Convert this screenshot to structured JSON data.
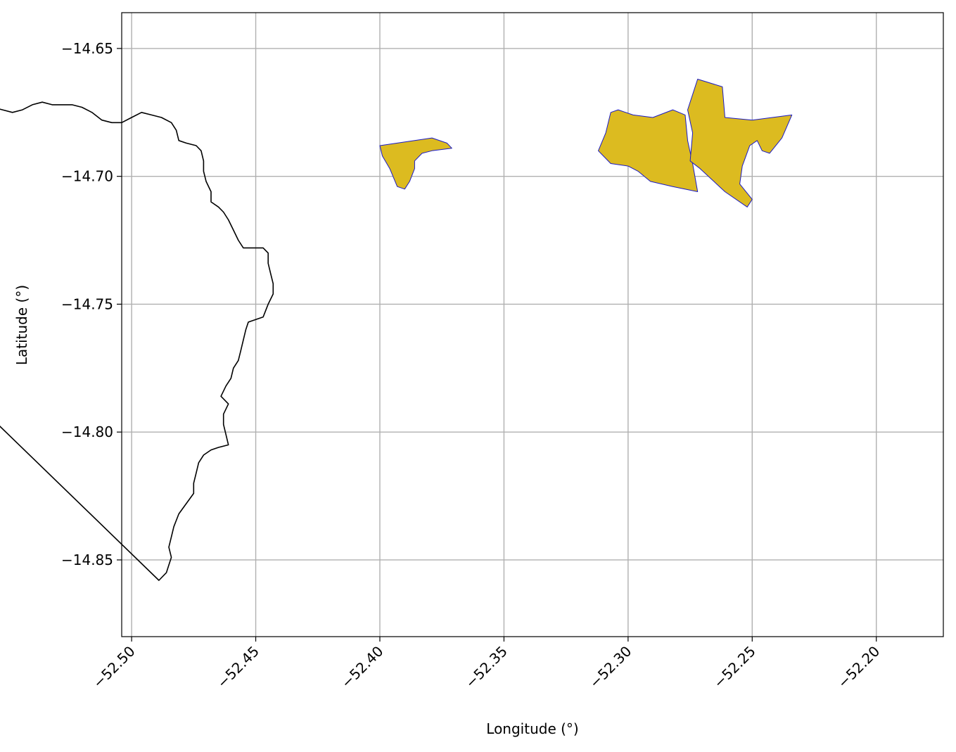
{
  "axes": {
    "xlabel": "Longitude (°)",
    "ylabel": "Latitude (°)",
    "xlim": [
      -52.504,
      -52.173
    ],
    "ylim": [
      -14.88,
      -14.636
    ],
    "xticks": [
      {
        "value": -52.5,
        "label": "−52.50"
      },
      {
        "value": -52.45,
        "label": "−52.45"
      },
      {
        "value": -52.4,
        "label": "−52.40"
      },
      {
        "value": -52.35,
        "label": "−52.35"
      },
      {
        "value": -52.3,
        "label": "−52.30"
      },
      {
        "value": -52.25,
        "label": "−52.25"
      },
      {
        "value": -52.2,
        "label": "−52.20"
      }
    ],
    "yticks": [
      {
        "value": -14.65,
        "label": "−14.65"
      },
      {
        "value": -14.7,
        "label": "−14.70"
      },
      {
        "value": -14.75,
        "label": "−14.75"
      },
      {
        "value": -14.8,
        "label": "−14.80"
      },
      {
        "value": -14.85,
        "label": "−14.85"
      }
    ],
    "grid": true,
    "xtick_rotation_deg": 45
  },
  "colors": {
    "boundary": "#000000",
    "highlight_fill": "#dcbb20",
    "highlight_edge": "#1a1ac8",
    "grid": "#b0b0b0"
  },
  "map": {
    "boundary": [
      [
        -52.489,
        -14.858
      ],
      [
        -52.486,
        -14.855
      ],
      [
        -52.485,
        -14.852
      ],
      [
        -52.484,
        -14.849
      ],
      [
        -52.485,
        -14.845
      ],
      [
        -52.484,
        -14.841
      ],
      [
        -52.483,
        -14.837
      ],
      [
        -52.481,
        -14.832
      ],
      [
        -52.478,
        -14.828
      ],
      [
        -52.475,
        -14.824
      ],
      [
        -52.475,
        -14.82
      ],
      [
        -52.474,
        -14.816
      ],
      [
        -52.473,
        -14.812
      ],
      [
        -52.471,
        -14.809
      ],
      [
        -52.468,
        -14.807
      ],
      [
        -52.465,
        -14.806
      ],
      [
        -52.461,
        -14.805
      ],
      [
        -52.462,
        -14.801
      ],
      [
        -52.463,
        -14.797
      ],
      [
        -52.463,
        -14.793
      ],
      [
        -52.461,
        -14.789
      ],
      [
        -52.464,
        -14.786
      ],
      [
        -52.462,
        -14.782
      ],
      [
        -52.46,
        -14.779
      ],
      [
        -52.459,
        -14.775
      ],
      [
        -52.457,
        -14.772
      ],
      [
        -52.456,
        -14.768
      ],
      [
        -52.455,
        -14.764
      ],
      [
        -52.454,
        -14.76
      ],
      [
        -52.453,
        -14.757
      ],
      [
        -52.45,
        -14.756
      ],
      [
        -52.447,
        -14.755
      ],
      [
        -52.445,
        -14.75
      ],
      [
        -52.443,
        -14.746
      ],
      [
        -52.443,
        -14.742
      ],
      [
        -52.444,
        -14.738
      ],
      [
        -52.445,
        -14.734
      ],
      [
        -52.445,
        -14.73
      ],
      [
        -52.447,
        -14.728
      ],
      [
        -52.451,
        -14.728
      ],
      [
        -52.455,
        -14.728
      ],
      [
        -52.457,
        -14.725
      ],
      [
        -52.459,
        -14.721
      ],
      [
        -52.461,
        -14.717
      ],
      [
        -52.463,
        -14.714
      ],
      [
        -52.465,
        -14.712
      ],
      [
        -52.468,
        -14.71
      ],
      [
        -52.468,
        -14.706
      ],
      [
        -52.47,
        -14.702
      ],
      [
        -52.471,
        -14.698
      ],
      [
        -52.471,
        -14.694
      ],
      [
        -52.472,
        -14.69
      ],
      [
        -52.474,
        -14.688
      ],
      [
        -52.478,
        -14.687
      ],
      [
        -52.481,
        -14.686
      ],
      [
        -52.482,
        -14.682
      ],
      [
        -52.484,
        -14.679
      ],
      [
        -52.488,
        -14.677
      ],
      [
        -52.492,
        -14.676
      ],
      [
        -52.496,
        -14.675
      ],
      [
        -52.5,
        -14.677
      ],
      [
        -52.504,
        -14.679
      ],
      [
        -52.508,
        -14.679
      ],
      [
        -52.512,
        -14.678
      ],
      [
        -52.516,
        -14.675
      ],
      [
        -52.52,
        -14.673
      ],
      [
        -52.524,
        -14.672
      ],
      [
        -52.528,
        -14.672
      ],
      [
        -52.532,
        -14.672
      ],
      [
        -52.536,
        -14.671
      ],
      [
        -52.54,
        -14.672
      ],
      [
        -52.544,
        -14.674
      ],
      [
        -52.548,
        -14.675
      ],
      [
        -52.552,
        -14.674
      ],
      [
        -52.556,
        -14.673
      ],
      [
        -52.56,
        -14.671
      ],
      [
        -52.564,
        -14.669
      ],
      [
        -52.566,
        -14.666
      ],
      [
        -52.57,
        -14.663
      ],
      [
        -52.573,
        -14.66
      ],
      [
        -52.575,
        -14.657
      ],
      [
        -52.578,
        -14.654
      ],
      [
        -52.581,
        -14.651
      ],
      [
        -52.583,
        -14.649
      ],
      [
        -52.586,
        -14.648
      ],
      [
        -52.59,
        -14.648
      ],
      [
        -52.591,
        -14.651
      ],
      [
        -52.592,
        -14.653
      ],
      [
        -52.596,
        -14.653
      ],
      [
        -52.6,
        -14.654
      ],
      [
        -52.604,
        -14.655
      ],
      [
        -52.608,
        -14.655
      ],
      [
        -52.611,
        -14.654
      ],
      [
        -52.613,
        -14.651
      ],
      [
        -52.616,
        -14.652
      ],
      [
        -52.619,
        -14.655
      ],
      [
        -52.622,
        -14.656
      ],
      [
        -52.626,
        -14.657
      ],
      [
        -52.629,
        -14.659
      ],
      [
        -52.632,
        -14.66
      ],
      [
        -52.636,
        -14.66
      ],
      [
        -52.64,
        -14.66
      ],
      [
        -52.644,
        -14.66
      ],
      [
        -52.648,
        -14.66
      ],
      [
        -52.652,
        -14.66
      ],
      [
        -52.656,
        -14.659
      ],
      [
        -52.66,
        -14.659
      ],
      [
        -52.664,
        -14.658
      ],
      [
        -52.668,
        -14.658
      ],
      [
        -52.672,
        -14.657
      ],
      [
        -52.676,
        -14.656
      ],
      [
        -52.68,
        -14.654
      ],
      [
        -52.684,
        -14.653
      ],
      [
        -52.688,
        -14.652
      ],
      [
        -52.692,
        -14.652
      ],
      [
        -52.696,
        -14.652
      ],
      [
        -52.7,
        -14.653
      ],
      [
        -52.704,
        -14.653
      ],
      [
        -52.708,
        -14.652
      ]
    ],
    "highlighted_regions": [
      {
        "points": [
          [
            -52.4,
            -14.688
          ],
          [
            -52.379,
            -14.685
          ],
          [
            -52.373,
            -14.687
          ],
          [
            -52.371,
            -14.689
          ],
          [
            -52.379,
            -14.69
          ],
          [
            -52.383,
            -14.691
          ],
          [
            -52.386,
            -14.694
          ],
          [
            -52.386,
            -14.697
          ],
          [
            -52.388,
            -14.702
          ],
          [
            -52.39,
            -14.705
          ],
          [
            -52.393,
            -14.704
          ],
          [
            -52.396,
            -14.697
          ],
          [
            -52.399,
            -14.692
          ]
        ]
      },
      {
        "points": [
          [
            -52.312,
            -14.69
          ],
          [
            -52.309,
            -14.683
          ],
          [
            -52.307,
            -14.675
          ],
          [
            -52.304,
            -14.674
          ],
          [
            -52.298,
            -14.676
          ],
          [
            -52.29,
            -14.677
          ],
          [
            -52.282,
            -14.674
          ],
          [
            -52.277,
            -14.676
          ],
          [
            -52.276,
            -14.686
          ],
          [
            -52.274,
            -14.695
          ],
          [
            -52.272,
            -14.706
          ],
          [
            -52.282,
            -14.704
          ],
          [
            -52.291,
            -14.702
          ],
          [
            -52.296,
            -14.698
          ],
          [
            -52.3,
            -14.696
          ],
          [
            -52.307,
            -14.695
          ],
          [
            -52.31,
            -14.692
          ]
        ]
      },
      {
        "points": [
          [
            -52.272,
            -14.662
          ],
          [
            -52.262,
            -14.665
          ],
          [
            -52.261,
            -14.677
          ],
          [
            -52.25,
            -14.678
          ],
          [
            -52.234,
            -14.676
          ],
          [
            -52.238,
            -14.685
          ],
          [
            -52.243,
            -14.691
          ],
          [
            -52.246,
            -14.69
          ],
          [
            -52.248,
            -14.686
          ],
          [
            -52.251,
            -14.688
          ],
          [
            -52.254,
            -14.696
          ],
          [
            -52.255,
            -14.703
          ],
          [
            -52.25,
            -14.709
          ],
          [
            -52.252,
            -14.712
          ],
          [
            -52.261,
            -14.706
          ],
          [
            -52.271,
            -14.697
          ],
          [
            -52.275,
            -14.694
          ],
          [
            -52.274,
            -14.683
          ],
          [
            -52.276,
            -14.674
          ]
        ]
      }
    ]
  }
}
